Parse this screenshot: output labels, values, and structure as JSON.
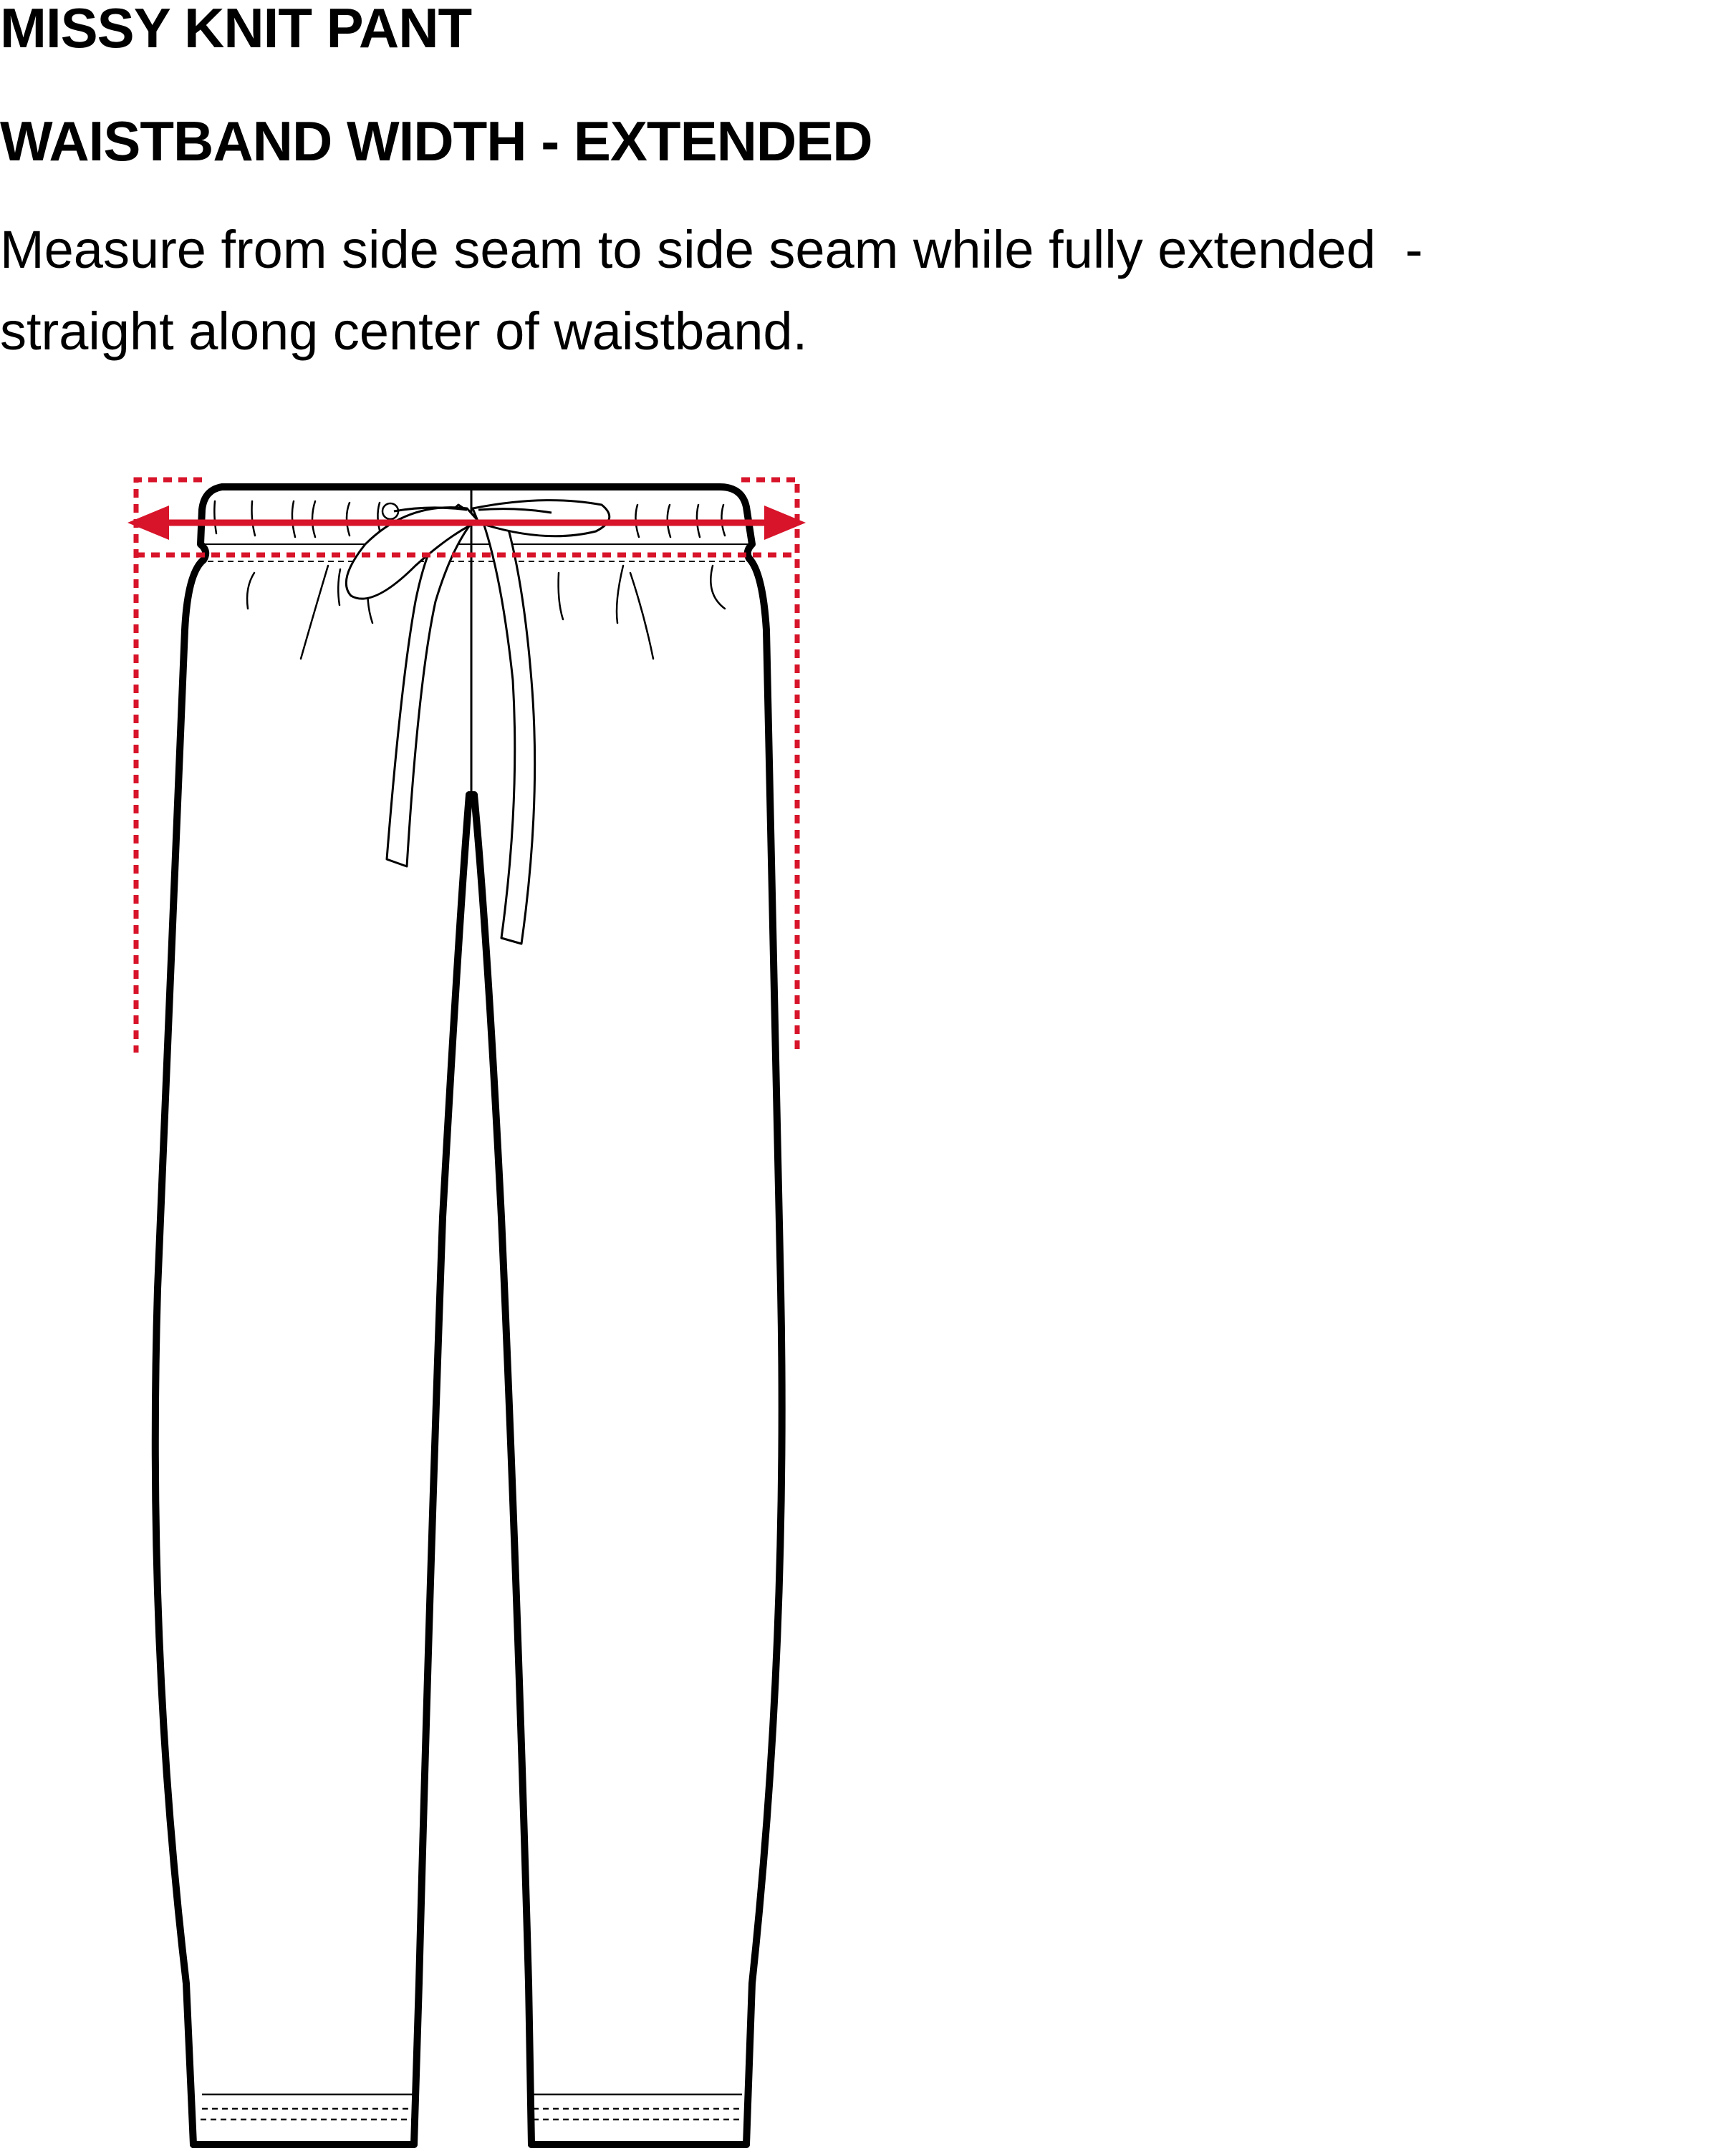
{
  "header": {
    "title": "MISSY KNIT PANT",
    "subtitle": "WAISTBAND WIDTH - EXTENDED"
  },
  "instruction": {
    "line1": "Measure from side seam to side seam while fully extended  -",
    "line2": "straight along center of waistband."
  },
  "colors": {
    "outline": "#000000",
    "measure": "#d7142a",
    "background": "#ffffff"
  }
}
